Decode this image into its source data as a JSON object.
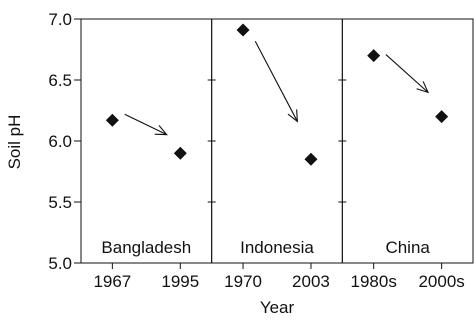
{
  "chart_data": {
    "type": "scatter",
    "title": "",
    "ylabel": "Soil pH",
    "xlabel": "Year",
    "ylim": [
      5.0,
      7.0
    ],
    "yticks": [
      "5.0",
      "5.5",
      "6.0",
      "6.5",
      "7.0"
    ],
    "grid": false,
    "marker": "diamond",
    "marker_color": "#111111",
    "panels": [
      {
        "name": "Bangladesh",
        "categories": [
          "1967",
          "1995"
        ],
        "values": [
          6.17,
          5.9
        ],
        "trend_arrow": "down"
      },
      {
        "name": "Indonesia",
        "categories": [
          "1970",
          "2003"
        ],
        "values": [
          6.91,
          5.85
        ],
        "trend_arrow": "down"
      },
      {
        "name": "China",
        "categories": [
          "1980s",
          "2000s"
        ],
        "values": [
          6.7,
          6.2
        ],
        "trend_arrow": "down"
      }
    ]
  }
}
